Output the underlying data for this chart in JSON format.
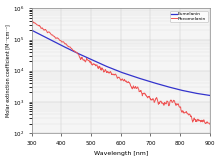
{
  "title": "",
  "xlabel": "Wavelength [nm]",
  "ylabel": "Molar extinction coefficient [M⁻¹cm⁻¹]",
  "legend_eumelanin": "Eumelanin",
  "legend_pheomelanin": "Pheomelanin",
  "color_eu": "#3333cc",
  "color_pheo": "#ee5555",
  "xlim": [
    300,
    900
  ],
  "ylim_log": [
    2,
    6
  ],
  "background": "#f5f5f5",
  "eumelanin_x": [
    300,
    350,
    400,
    450,
    500,
    550,
    600,
    650,
    700,
    750,
    800,
    850,
    900
  ],
  "eumelanin_y": [
    200000.0,
    115000.0,
    65000.0,
    38000.0,
    23000.0,
    14000.0,
    9000,
    6200,
    4400,
    3200,
    2400,
    1900,
    1600
  ],
  "pheomelanin_x": [
    300,
    340,
    380,
    420,
    460,
    490,
    510,
    540,
    570,
    600,
    630,
    660,
    690,
    720,
    750,
    770,
    800,
    820,
    840,
    860,
    880,
    900
  ],
  "pheomelanin_y": [
    400000.0,
    220000.0,
    120000.0,
    65000.0,
    32000.0,
    20000.0,
    16000.0,
    11000.0,
    8000,
    5500,
    3800,
    2400,
    1500,
    1100,
    900,
    1100,
    700,
    450,
    300,
    260,
    230,
    200
  ],
  "wiggle_seed": 7,
  "wiggle_scale_low": 0.07,
  "wiggle_scale_high": 0.18
}
